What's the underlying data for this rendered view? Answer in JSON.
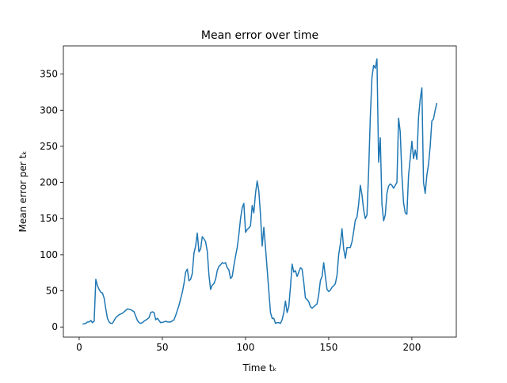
{
  "chart_data": {
    "type": "line",
    "title": "Mean error over time",
    "x_label": "Time tₖ",
    "y_label": "Mean error per tₖ",
    "x": [
      2,
      4,
      5,
      6,
      7,
      8,
      9,
      10,
      11,
      12,
      13,
      14,
      15,
      16,
      17,
      18,
      19,
      20,
      21,
      22,
      24,
      26,
      28,
      29,
      31,
      33,
      34,
      35,
      36,
      37,
      38,
      39,
      41,
      42,
      43,
      44,
      45,
      46,
      47,
      48,
      49,
      51,
      52,
      53,
      55,
      57,
      58,
      60,
      62,
      63,
      64,
      65,
      66,
      67,
      68,
      69,
      70,
      71,
      72,
      73,
      74,
      75,
      76,
      77,
      78,
      79,
      80,
      81,
      82,
      83,
      84,
      85,
      86,
      87,
      88,
      89,
      90,
      91,
      92,
      93,
      94,
      95,
      96,
      97,
      98,
      99,
      100,
      101,
      102,
      103,
      104,
      105,
      106,
      107,
      108,
      109,
      110,
      111,
      112,
      113,
      114,
      115,
      116,
      117,
      118,
      119,
      120,
      121,
      122,
      123,
      124,
      125,
      126,
      127,
      128,
      129,
      130,
      131,
      132,
      133,
      134,
      135,
      136,
      137,
      138,
      139,
      140,
      141,
      142,
      143,
      144,
      145,
      146,
      147,
      148,
      149,
      150,
      151,
      152,
      153,
      154,
      155,
      156,
      157,
      158,
      159,
      160,
      161,
      162,
      163,
      164,
      165,
      166,
      167,
      168,
      169,
      170,
      171,
      172,
      173,
      174,
      175,
      176,
      177,
      178,
      179,
      180,
      181,
      182,
      183,
      184,
      185,
      186,
      187,
      188,
      189,
      190,
      191,
      192,
      193,
      194,
      195,
      196,
      197,
      198,
      199,
      200,
      201,
      202,
      203,
      204,
      205,
      206,
      207,
      208,
      209,
      210,
      211,
      212,
      213,
      214,
      215
    ],
    "series": [
      {
        "name": "Mean error",
        "color": "#1f77b4",
        "values": [
          4,
          5,
          7,
          7,
          9,
          6,
          8,
          66,
          57,
          52,
          48,
          47,
          40,
          25,
          12,
          7,
          5,
          5,
          9,
          13,
          17,
          19,
          23,
          25,
          24,
          21,
          15,
          9,
          6,
          5,
          6,
          8,
          11,
          13,
          20,
          21,
          20,
          10,
          12,
          9,
          6,
          7,
          8,
          7,
          7,
          10,
          16,
          30,
          48,
          60,
          76,
          80,
          64,
          66,
          74,
          102,
          112,
          130,
          104,
          108,
          125,
          122,
          118,
          105,
          72,
          52,
          58,
          60,
          66,
          78,
          84,
          86,
          89,
          88,
          89,
          82,
          79,
          67,
          70,
          85,
          98,
          110,
          128,
          150,
          165,
          171,
          131,
          135,
          137,
          140,
          168,
          158,
          185,
          202,
          188,
          155,
          112,
          138,
          110,
          80,
          50,
          20,
          12,
          12,
          5,
          6,
          6,
          5,
          10,
          20,
          36,
          20,
          28,
          55,
          87,
          76,
          78,
          70,
          76,
          82,
          80,
          62,
          40,
          38,
          35,
          28,
          26,
          28,
          30,
          32,
          45,
          64,
          70,
          89,
          70,
          52,
          49,
          51,
          55,
          57,
          60,
          72,
          100,
          115,
          136,
          108,
          95,
          110,
          110,
          110,
          118,
          132,
          148,
          152,
          170,
          196,
          183,
          162,
          150,
          155,
          215,
          290,
          345,
          362,
          358,
          371,
          228,
          262,
          170,
          147,
          155,
          185,
          195,
          198,
          196,
          192,
          196,
          200,
          289,
          270,
          210,
          172,
          158,
          156,
          210,
          233,
          257,
          233,
          245,
          232,
          290,
          315,
          331,
          200,
          185,
          210,
          225,
          250,
          285,
          288,
          300,
          310
        ]
      }
    ],
    "xlim": [
      -9.5,
      226.7
    ],
    "ylim": [
      -14,
      389
    ],
    "xticks": [
      0,
      50,
      100,
      150,
      200
    ],
    "yticks": [
      0,
      50,
      100,
      150,
      200,
      250,
      300,
      350
    ]
  }
}
